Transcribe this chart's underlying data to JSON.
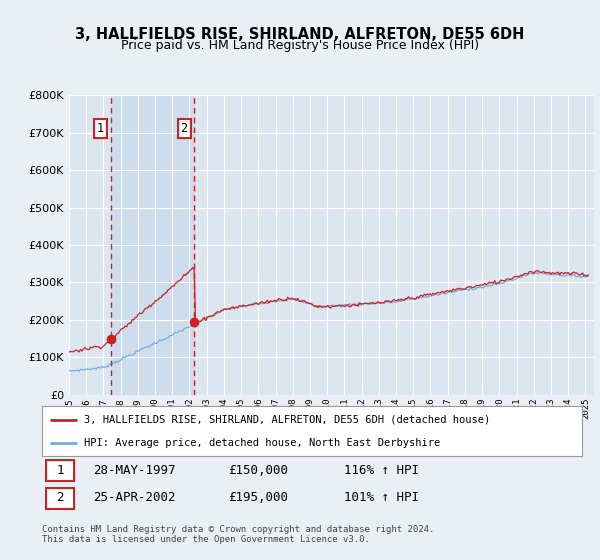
{
  "title": "3, HALLFIELDS RISE, SHIRLAND, ALFRETON, DE55 6DH",
  "subtitle": "Price paid vs. HM Land Registry's House Price Index (HPI)",
  "ylim": [
    0,
    800000
  ],
  "xlim_start": 1995.0,
  "xlim_end": 2025.5,
  "purchase1_x": 1997.42,
  "purchase1_y": 150000,
  "purchase2_x": 2002.29,
  "purchase2_y": 195000,
  "line1_color": "#cc2222",
  "line2_color": "#7aacda",
  "dashed_color": "#cc2222",
  "shade_color": "#ccdcee",
  "background_color": "#eaeff5",
  "plot_bg_color": "#dce6f0",
  "legend1_text": "3, HALLFIELDS RISE, SHIRLAND, ALFRETON, DE55 6DH (detached house)",
  "legend2_text": "HPI: Average price, detached house, North East Derbyshire",
  "table_row1": [
    "1",
    "28-MAY-1997",
    "£150,000",
    "116% ↑ HPI"
  ],
  "table_row2": [
    "2",
    "25-APR-2002",
    "£195,000",
    "101% ↑ HPI"
  ],
  "footer": "Contains HM Land Registry data © Crown copyright and database right 2024.\nThis data is licensed under the Open Government Licence v3.0.",
  "grid_color": "#ffffff",
  "title_fontsize": 10.5,
  "subtitle_fontsize": 9
}
